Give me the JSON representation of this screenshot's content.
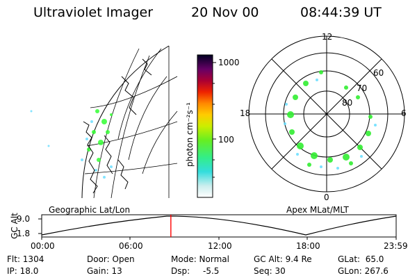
{
  "header": {
    "title": "Ultraviolet Imager",
    "date": "20 Nov 00",
    "time": "08:44:39 UT"
  },
  "colorbar": {
    "label": "photon cm⁻²s⁻¹",
    "ticks": [
      "1000",
      "100"
    ]
  },
  "polar_plot": {
    "clock_labels": {
      "top": "12",
      "left": "18",
      "right": "6",
      "bottom": "0"
    },
    "ring_labels": [
      "60",
      "70",
      "80"
    ],
    "title": "Apex MLat/MLT"
  },
  "geo_plot": {
    "title": "Geographic Lat/Lon"
  },
  "timeline": {
    "ylabel": "GC Alt",
    "yticks": [
      "9.0",
      "1.8"
    ],
    "xticks": [
      "00:00",
      "06:00",
      "12:00",
      "18:00",
      "23:59"
    ],
    "current_time_fraction": 0.3644,
    "marker_color": "#ff0000"
  },
  "info": {
    "flt": "Flt: 1304",
    "ip": "IP: 18.0",
    "door": "Door: Open",
    "gain": "Gain: 13",
    "mode": "Mode: Normal",
    "dsp_label": "Dsp:",
    "dsp_value": "-5.5",
    "gc_alt": "GC Alt: 9.4 Re",
    "seq": "Seq: 30",
    "glat": "GLat:  65.0",
    "glon": "GLon: 267.6"
  }
}
